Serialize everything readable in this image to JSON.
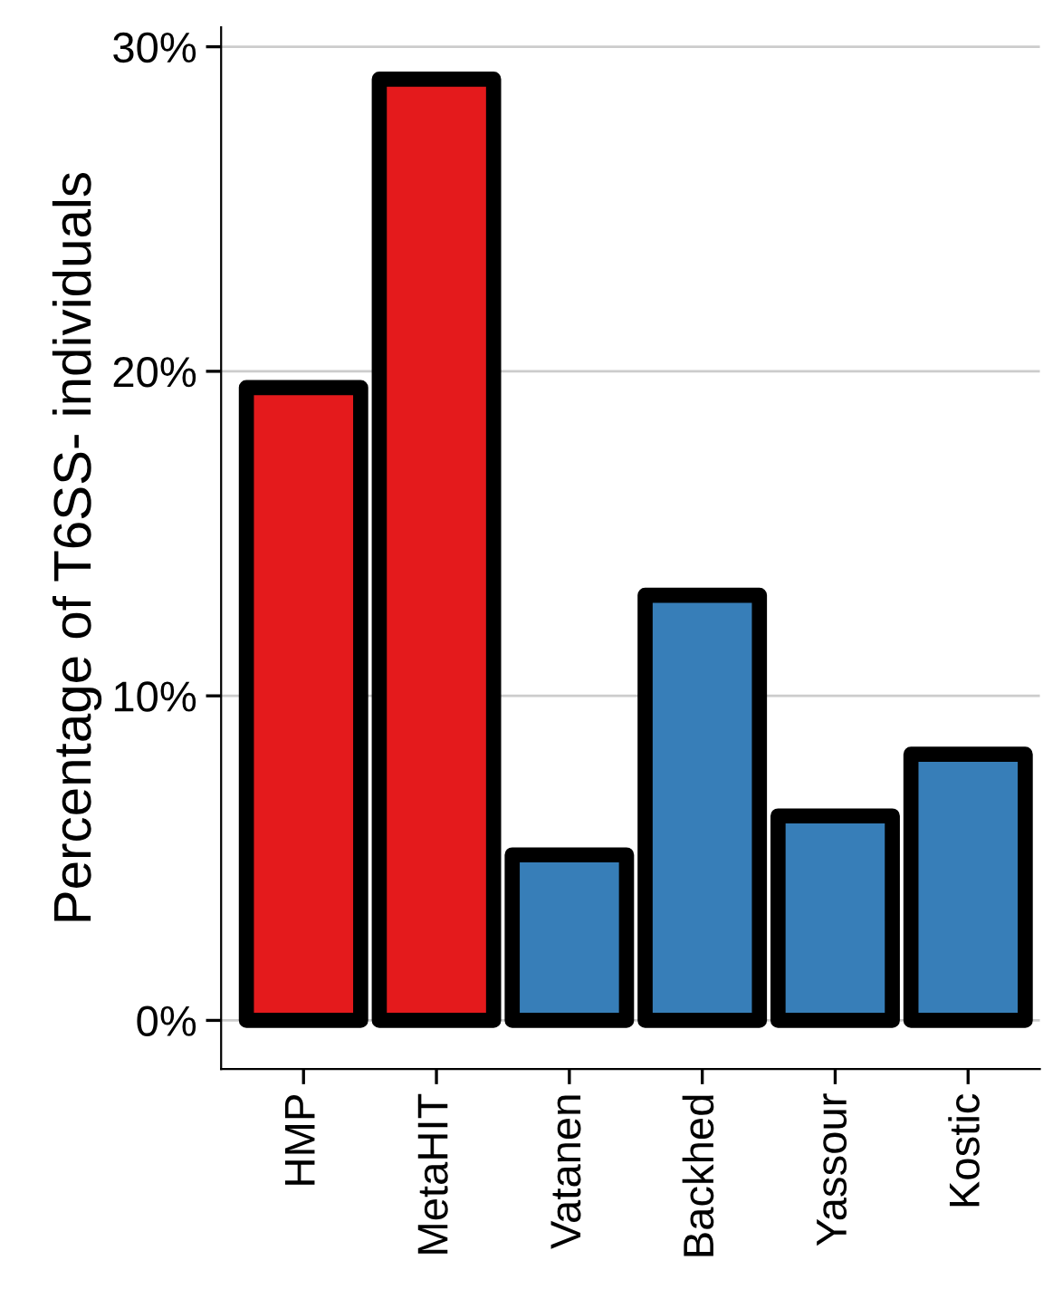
{
  "chart_data": {
    "type": "bar",
    "ylabel": "Percentage of T6SS- individuals",
    "categories": [
      "HMP",
      "MetaHIT",
      "Vatanen",
      "Backhed",
      "Yassour",
      "Kostic"
    ],
    "values": [
      19.5,
      29.0,
      5.1,
      13.1,
      6.3,
      8.2
    ],
    "colors": [
      "#e41a1c",
      "#e41a1c",
      "#377eb8",
      "#377eb8",
      "#377eb8",
      "#377eb8"
    ],
    "ylim": [
      -1.5,
      30.6
    ],
    "yticks": [
      {
        "value": 0,
        "label": "0%"
      },
      {
        "value": 10,
        "label": "10%"
      },
      {
        "value": 20,
        "label": "20%"
      },
      {
        "value": 30,
        "label": "30%"
      }
    ],
    "grid": "y"
  }
}
